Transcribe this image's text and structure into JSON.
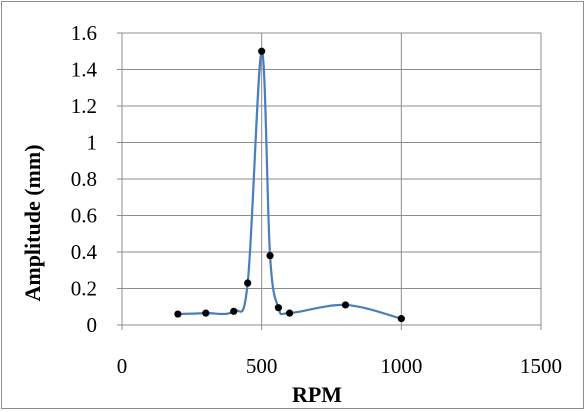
{
  "chart_data": {
    "type": "line",
    "title": "",
    "xlabel": "RPM",
    "ylabel": "Amplitude (mm)",
    "xlim": [
      0,
      1500
    ],
    "ylim": [
      0,
      1.6
    ],
    "x_ticks": [
      0,
      500,
      1000,
      1500
    ],
    "x_tick_labels": [
      "0",
      "500",
      "1000",
      "1500"
    ],
    "y_ticks": [
      0,
      0.2,
      0.4,
      0.6,
      0.8,
      1.0,
      1.2,
      1.4,
      1.6
    ],
    "y_tick_labels": [
      "0",
      "0.2",
      "0.4",
      "0.6",
      "0.8",
      "1",
      "1.2",
      "1.4",
      "1.6"
    ],
    "grid": "major gridlines on both axes",
    "legend": "none",
    "smooth": true,
    "series": [
      {
        "x": [
          200,
          300,
          400,
          450,
          500,
          530,
          560,
          600,
          800,
          1000
        ],
        "y": [
          0.06,
          0.065,
          0.075,
          0.23,
          1.5,
          0.38,
          0.095,
          0.065,
          0.11,
          0.035
        ],
        "line_color": "#4a7ebb",
        "marker_color": "#000000"
      }
    ]
  }
}
